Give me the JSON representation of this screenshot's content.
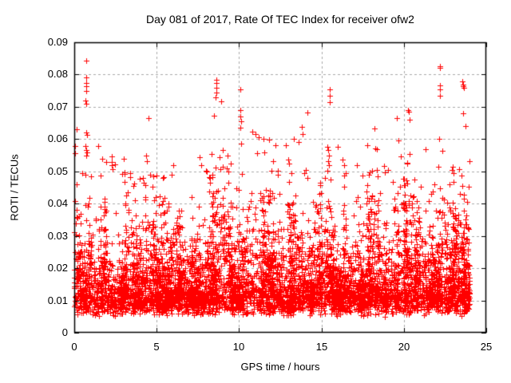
{
  "page": {
    "background_color": "#ffffff",
    "text_color": "#000000"
  },
  "chart_data": {
    "type": "scatter",
    "title": "Day 081 of 2017, Rate Of TEC Index for receiver ofw2",
    "xlabel": "GPS time / hours",
    "ylabel": "ROTI / TECUs",
    "xlim": [
      0,
      25
    ],
    "ylim": [
      0,
      0.09
    ],
    "xticks": {
      "values": [
        0,
        5,
        10,
        15,
        20,
        25
      ],
      "labels": [
        "0",
        "5",
        "10",
        "15",
        "20",
        "25"
      ]
    },
    "yticks": {
      "values": [
        0,
        0.01,
        0.02,
        0.03,
        0.04,
        0.05,
        0.06,
        0.07,
        0.08,
        0.09
      ],
      "labels": [
        "0",
        "0.01",
        "0.02",
        "0.03",
        "0.04",
        "0.05",
        "0.06",
        "0.07",
        "0.08",
        "0.09"
      ]
    },
    "grid": {
      "show": true,
      "color": "#a8a8a8",
      "dash": [
        3,
        3
      ]
    },
    "border_color": "#000000",
    "tick_length": 6,
    "marker": {
      "shape": "plus",
      "color": "#ff0000",
      "size": 7,
      "stroke": 1
    },
    "series": [
      {
        "name": "ROTI",
        "x_visible_range": [
          0,
          24
        ],
        "y_visible_range": [
          0.004,
          0.0843
        ],
        "dense_band": {
          "n_points": 6000,
          "seed": 81,
          "x_range": [
            0,
            24
          ],
          "column_width_hours": 0.25,
          "y_floor": 0.0075,
          "tail_mean": 0.0085,
          "y_cap": 0.054,
          "hourly_amplitude": [
            1.35,
            1.1,
            0.95,
            1.25,
            1.15,
            1.05,
            0.85,
            0.8,
            1.35,
            1.3,
            1.45,
            1.35,
            1.3,
            1.25,
            1.1,
            1.3,
            1.1,
            1.2,
            1.35,
            1.3,
            1.4,
            1.3,
            1.4,
            1.35
          ]
        },
        "outlier_points": [
          [
            0.05,
            0.0578
          ],
          [
            0.05,
            0.0557
          ],
          [
            0.5,
            0.0495
          ],
          [
            0.68,
            0.0578
          ],
          [
            0.7,
            0.049
          ],
          [
            0.7,
            0.072
          ],
          [
            0.72,
            0.071
          ],
          [
            0.73,
            0.0843
          ],
          [
            0.73,
            0.079
          ],
          [
            0.73,
            0.0775
          ],
          [
            0.73,
            0.0765
          ],
          [
            0.73,
            0.075
          ],
          [
            0.73,
            0.062
          ],
          [
            0.75,
            0.0565
          ],
          [
            0.75,
            0.0548
          ],
          [
            0.78,
            0.0558
          ],
          [
            1.0,
            0.0485
          ],
          [
            1.45,
            0.0578
          ],
          [
            1.6,
            0.0488
          ],
          [
            1.7,
            0.054
          ],
          [
            1.95,
            0.053
          ],
          [
            2.28,
            0.0546
          ],
          [
            2.28,
            0.053
          ],
          [
            2.3,
            0.052
          ],
          [
            2.32,
            0.0507
          ],
          [
            2.9,
            0.0492
          ],
          [
            4.5,
            0.0665
          ],
          [
            4.6,
            0.049
          ],
          [
            4.8,
            0.0485
          ],
          [
            5.0,
            0.0487
          ],
          [
            5.4,
            0.048
          ],
          [
            5.9,
            0.049
          ],
          [
            7.6,
            0.0545
          ],
          [
            7.7,
            0.052
          ],
          [
            8.0,
            0.0502
          ],
          [
            8.2,
            0.0482
          ],
          [
            8.6,
            0.0785
          ],
          [
            8.6,
            0.0775
          ],
          [
            8.62,
            0.076
          ],
          [
            8.6,
            0.0745
          ],
          [
            8.58,
            0.073
          ],
          [
            8.5,
            0.0673
          ],
          [
            8.9,
            0.0718
          ],
          [
            9.0,
            0.0565
          ],
          [
            9.3,
            0.055
          ],
          [
            10.1,
            0.0755
          ],
          [
            10.1,
            0.069
          ],
          [
            10.08,
            0.067
          ],
          [
            10.12,
            0.0655
          ],
          [
            10.1,
            0.0635
          ],
          [
            10.15,
            0.0585
          ],
          [
            10.8,
            0.0623
          ],
          [
            11.0,
            0.0615
          ],
          [
            11.2,
            0.0605
          ],
          [
            11.5,
            0.06
          ],
          [
            11.8,
            0.0598
          ],
          [
            12.2,
            0.0582
          ],
          [
            13.3,
            0.06
          ],
          [
            13.8,
            0.0638
          ],
          [
            13.85,
            0.0615
          ],
          [
            14.15,
            0.0682
          ],
          [
            15.4,
            0.0566
          ],
          [
            15.45,
            0.055
          ],
          [
            15.4,
            0.0532
          ],
          [
            15.5,
            0.0755
          ],
          [
            15.5,
            0.0735
          ],
          [
            15.5,
            0.0715
          ],
          [
            16.0,
            0.0576
          ],
          [
            16.3,
            0.0537
          ],
          [
            16.4,
            0.052
          ],
          [
            17.5,
            0.0487
          ],
          [
            18.2,
            0.0633
          ],
          [
            18.35,
            0.0569
          ],
          [
            18.8,
            0.0517
          ],
          [
            18.85,
            0.0497
          ],
          [
            19.55,
            0.0665
          ],
          [
            20.25,
            0.069
          ],
          [
            20.3,
            0.0685
          ],
          [
            20.35,
            0.066
          ],
          [
            20.35,
            0.0554
          ],
          [
            21.3,
            0.0568
          ],
          [
            22.2,
            0.0827
          ],
          [
            22.2,
            0.082
          ],
          [
            22.2,
            0.0766
          ],
          [
            22.2,
            0.0753
          ],
          [
            22.2,
            0.0734
          ],
          [
            22.95,
            0.0514
          ],
          [
            23.0,
            0.0495
          ],
          [
            23.0,
            0.0468
          ],
          [
            23.55,
            0.078
          ],
          [
            23.6,
            0.077
          ],
          [
            23.6,
            0.0765
          ],
          [
            23.65,
            0.076
          ],
          [
            23.6,
            0.068
          ]
        ]
      }
    ]
  }
}
